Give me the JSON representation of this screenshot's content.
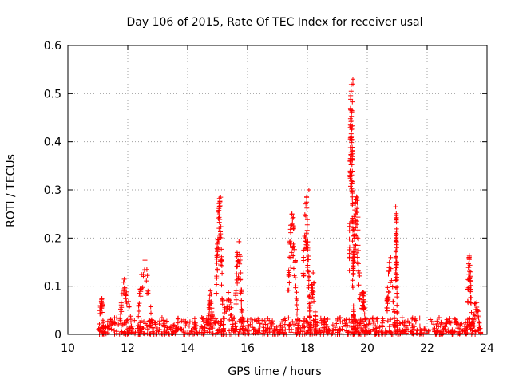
{
  "chart_data": {
    "type": "scatter",
    "title": "Day 106 of 2015, Rate Of TEC Index for receiver usal",
    "xlabel": "GPS time / hours",
    "ylabel": "ROTI / TECUs",
    "xlim": [
      10,
      24
    ],
    "ylim": [
      0,
      0.6
    ],
    "x_ticks": [
      10,
      12,
      14,
      16,
      18,
      20,
      22,
      24
    ],
    "y_ticks": [
      0,
      0.1,
      0.2,
      0.3,
      0.4,
      0.5,
      0.6
    ],
    "x_tick_labels": [
      "10",
      "12",
      "14",
      "16",
      "18",
      "20",
      "22",
      "24"
    ],
    "y_tick_labels": [
      "0",
      "0.1",
      "0.2",
      "0.3",
      "0.4",
      "0.5",
      "0.6"
    ],
    "grid": true,
    "marker": "+",
    "color": "#ff0000",
    "baseline": {
      "x_range": [
        11.0,
        23.8
      ],
      "y_range": [
        0.0,
        0.035
      ]
    },
    "bursts": [
      {
        "x0": 11.05,
        "x1": 11.2,
        "peak": 0.085
      },
      {
        "x0": 11.75,
        "x1": 12.15,
        "peak": 0.125
      },
      {
        "x0": 12.35,
        "x1": 12.85,
        "peak": 0.155
      },
      {
        "x0": 14.7,
        "x1": 14.85,
        "peak": 0.11
      },
      {
        "x0": 14.95,
        "x1": 15.2,
        "peak": 0.29
      },
      {
        "x0": 15.2,
        "x1": 15.55,
        "peak": 0.09
      },
      {
        "x0": 15.6,
        "x1": 15.85,
        "peak": 0.21
      },
      {
        "x0": 17.35,
        "x1": 17.7,
        "peak": 0.255
      },
      {
        "x0": 17.85,
        "x1": 18.1,
        "peak": 0.3
      },
      {
        "x0": 18.1,
        "x1": 18.3,
        "peak": 0.13
      },
      {
        "x0": 19.4,
        "x1": 19.55,
        "peak": 0.53
      },
      {
        "x0": 19.5,
        "x1": 19.8,
        "peak": 0.31
      },
      {
        "x0": 19.8,
        "x1": 19.95,
        "peak": 0.1
      },
      {
        "x0": 20.65,
        "x1": 20.95,
        "peak": 0.165
      },
      {
        "x0": 20.95,
        "x1": 21.0,
        "peak": 0.265
      },
      {
        "x0": 23.35,
        "x1": 23.5,
        "peak": 0.175
      },
      {
        "x0": 23.5,
        "x1": 23.8,
        "peak": 0.07
      }
    ],
    "notable_points": [
      {
        "x": 19.52,
        "y": 0.53
      },
      {
        "x": 19.52,
        "y": 0.52
      },
      {
        "x": 19.5,
        "y": 0.483
      },
      {
        "x": 19.5,
        "y": 0.433
      },
      {
        "x": 19.5,
        "y": 0.375
      },
      {
        "x": 20.95,
        "y": 0.265
      },
      {
        "x": 18.05,
        "y": 0.3
      },
      {
        "x": 15.1,
        "y": 0.285
      }
    ]
  }
}
